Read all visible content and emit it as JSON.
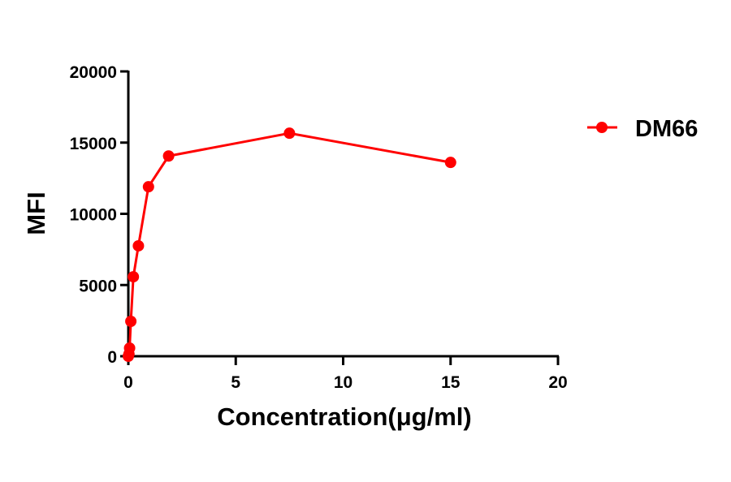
{
  "chart_data": {
    "type": "line",
    "title": "",
    "xlabel": "Concentration(μg/ml)",
    "ylabel": "MFI",
    "xlim": [
      0,
      20
    ],
    "ylim": [
      0,
      20000
    ],
    "xticks": [
      0,
      5,
      10,
      15,
      20
    ],
    "yticks": [
      0,
      5000,
      10000,
      15000,
      20000
    ],
    "grid": false,
    "legend_position": "right",
    "series": [
      {
        "name": "DM66",
        "color": "#ff0000",
        "marker": "circle",
        "x": [
          0,
          0.029,
          0.059,
          0.117,
          0.234,
          0.469,
          0.9375,
          1.875,
          7.5,
          15
        ],
        "y": [
          0,
          150,
          570,
          2450,
          5580,
          7750,
          11900,
          14060,
          15660,
          13610
        ]
      }
    ]
  },
  "axes": {
    "x_tick_labels": [
      "0",
      "5",
      "10",
      "15",
      "20"
    ],
    "y_tick_labels": [
      "0",
      "5000",
      "10000",
      "15000",
      "20000"
    ]
  },
  "legend": {
    "label": "DM66"
  }
}
